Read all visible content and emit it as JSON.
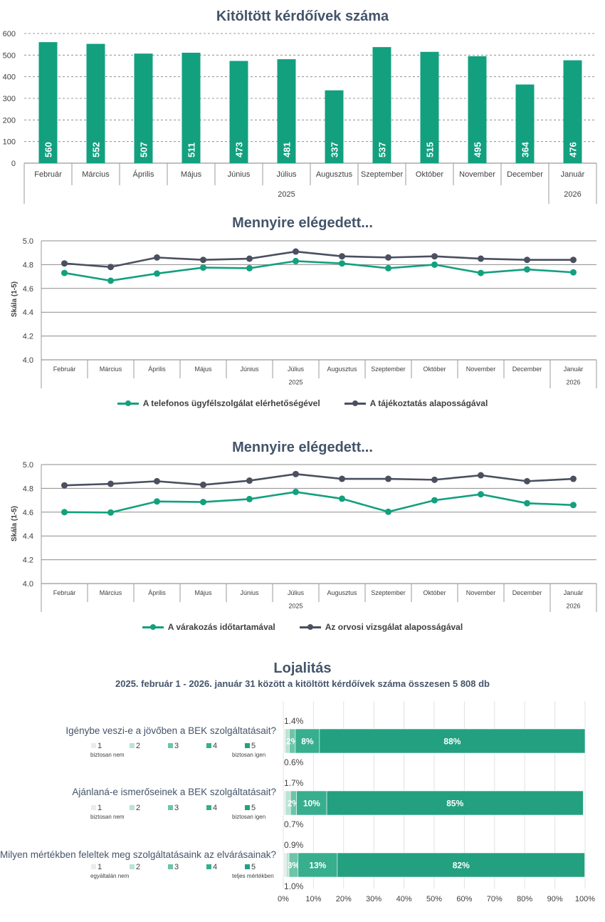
{
  "chart_data": [
    {
      "id": "bar",
      "type": "bar",
      "title": "Kitöltött kérdőívek száma",
      "categories": [
        "Február",
        "Március",
        "Április",
        "Május",
        "Június",
        "Július",
        "Augusztus",
        "Szeptember",
        "Október",
        "November",
        "December",
        "Január"
      ],
      "values": [
        560,
        552,
        507,
        511,
        473,
        481,
        337,
        537,
        515,
        495,
        364,
        476
      ],
      "value_labels": [
        "560",
        "552",
        "507",
        "511",
        "473",
        "481",
        "337",
        "537",
        "515",
        "495",
        "364",
        "476"
      ],
      "year_groups": [
        {
          "label": "2025",
          "count": 11
        },
        {
          "label": "2026",
          "count": 1
        }
      ],
      "ylim": [
        0,
        600
      ],
      "yticks": [
        "0",
        "100",
        "200",
        "300",
        "400",
        "500",
        "600"
      ],
      "color": "#13a07f"
    },
    {
      "id": "line1",
      "type": "line",
      "title": "Mennyire elégedett...",
      "ylabel": "Skála (1-5)",
      "ylim": [
        4.0,
        5.0
      ],
      "yticks": [
        "4.0",
        "4.2",
        "4.4",
        "4.6",
        "4.8",
        "5.0"
      ],
      "categories": [
        "Február",
        "Március",
        "Április",
        "Május",
        "Június",
        "Július",
        "Augusztus",
        "Szeptember",
        "Október",
        "November",
        "December",
        "Január"
      ],
      "year_groups": [
        {
          "label": "2025",
          "count": 11
        },
        {
          "label": "2026",
          "count": 1
        }
      ],
      "series": [
        {
          "name": "A telefonos ügyfélszolgálat elérhetőségével",
          "color": "#13a07f",
          "values": [
            4.73,
            4.665,
            4.725,
            4.775,
            4.77,
            4.83,
            4.81,
            4.77,
            4.8,
            4.73,
            4.76,
            4.735
          ]
        },
        {
          "name": "A tájékoztatás alaposságával",
          "color": "#4a5060",
          "values": [
            4.81,
            4.78,
            4.86,
            4.84,
            4.85,
            4.91,
            4.87,
            4.86,
            4.87,
            4.85,
            4.84,
            4.84
          ]
        }
      ]
    },
    {
      "id": "line2",
      "type": "line",
      "title": "Mennyire elégedett...",
      "ylabel": "Skála (1-5)",
      "ylim": [
        4.0,
        5.0
      ],
      "yticks": [
        "4.0",
        "4.2",
        "4.4",
        "4.6",
        "4.8",
        "5.0"
      ],
      "categories": [
        "Február",
        "Március",
        "Április",
        "Május",
        "Június",
        "Július",
        "Augusztus",
        "Szeptember",
        "Október",
        "November",
        "December",
        "Január"
      ],
      "year_groups": [
        {
          "label": "2025",
          "count": 11
        },
        {
          "label": "2026",
          "count": 1
        }
      ],
      "series": [
        {
          "name": "A várakozás időtartamával",
          "color": "#13a07f",
          "values": [
            4.6,
            4.597,
            4.69,
            4.685,
            4.71,
            4.77,
            4.713,
            4.603,
            4.7,
            4.75,
            4.675,
            4.66
          ]
        },
        {
          "name": "Az orvosi vizsgálat alaposságával",
          "color": "#4a5060",
          "values": [
            4.825,
            4.838,
            4.86,
            4.83,
            4.865,
            4.92,
            4.88,
            4.88,
            4.872,
            4.91,
            4.86,
            4.88
          ]
        }
      ]
    },
    {
      "id": "loyalty",
      "type": "bar",
      "orientation": "horizontal-stacked-100",
      "title": "Lojalitás",
      "subtitle": "2025. február 1 - 2026. január 31 között a kitöltött kérdőívek száma összesen 5 808 db",
      "xticks": [
        "0%",
        "10%",
        "20%",
        "30%",
        "40%",
        "50%",
        "60%",
        "70%",
        "80%",
        "90%",
        "100%"
      ],
      "xlim": [
        0,
        100
      ],
      "segment_colors": [
        "#e8ecea",
        "#b9e3d6",
        "#6dc4a9",
        "#37ae8e",
        "#23a07f"
      ],
      "scale_labels": [
        "1",
        "2",
        "3",
        "4",
        "5"
      ],
      "rows": [
        {
          "question": "Igénybe veszi-e a jövőben a BEK szolgáltatásait?",
          "values": [
            0.6,
            1.4,
            2.0,
            8.0,
            88.0
          ],
          "above_label": "1.4%",
          "below_label": "0.6%",
          "segment_labels": [
            "",
            "",
            "2%",
            "8%",
            "88%"
          ],
          "scale_low": "biztosan nem",
          "scale_high": "biztosan igen"
        },
        {
          "question": "Ajánlaná-e ismerőseinek a BEK szolgáltatásait?",
          "values": [
            0.7,
            1.7,
            2.0,
            10.0,
            85.0
          ],
          "above_label": "1.7%",
          "below_label": "0.7%",
          "segment_labels": [
            "",
            "",
            "2%",
            "10%",
            "85%"
          ],
          "scale_low": "biztosan nem",
          "scale_high": "biztosan igen"
        },
        {
          "question": "Milyen mértékben feleltek meg szolgáltatásaink az elvárásainak?",
          "values": [
            1.0,
            0.9,
            3.0,
            13.0,
            82.0
          ],
          "above_label": "0.9%",
          "below_label": "1.0%",
          "segment_labels": [
            "",
            "",
            "3%",
            "13%",
            "82%"
          ],
          "scale_low": "egyáltalán nem",
          "scale_high": "teljes mértékben"
        }
      ]
    }
  ]
}
